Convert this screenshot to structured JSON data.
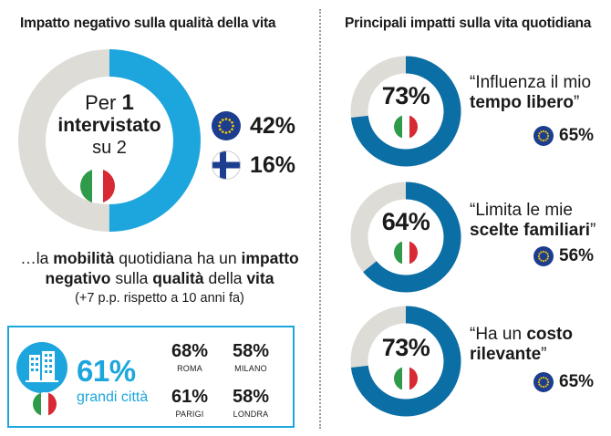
{
  "left": {
    "title": "Impatto negativo sulla qualità della vita",
    "donut": {
      "value_fraction": 0.5,
      "color": "#1ca6dd",
      "track_color": "#dedcd6"
    },
    "center_text": {
      "line1_pre": "Per",
      "line1_num": "1",
      "line2": "intervistato",
      "line3": "su 2"
    },
    "comparisons": [
      {
        "flag": "eu-flag-icon",
        "value": "42%"
      },
      {
        "flag": "finland-flag-icon",
        "value": "16%"
      }
    ],
    "caption": {
      "p1": "…la ",
      "b1": "mobilità",
      "p2": " quotidiana ha un ",
      "b2": "impatto",
      "b3": "negativo",
      "p3": " sulla ",
      "b4": "qualità",
      "p4": " della ",
      "b5": "vita",
      "note": "(+7 p.p. rispetto a 10 anni fa)"
    },
    "city_box": {
      "value": "61%",
      "label": "grandi città",
      "accent": "#1ca6dd",
      "cities": [
        {
          "value": "68%",
          "name": "ROMA"
        },
        {
          "value": "58%",
          "name": "MILANO"
        },
        {
          "value": "61%",
          "name": "PARIGI"
        },
        {
          "value": "58%",
          "name": "LONDRA"
        }
      ]
    }
  },
  "right": {
    "title": "Principali impatti sulla vita quotidiana",
    "track_color": "#dedcd6",
    "ring_color": "#0b6ea5",
    "items": [
      {
        "italy_value": "73%",
        "italy_fraction": 0.73,
        "quote_pre": "“Influenza il mio",
        "quote_bold": "tempo libero",
        "quote_post": "”",
        "eu_value": "65%"
      },
      {
        "italy_value": "64%",
        "italy_fraction": 0.64,
        "quote_pre": "“Limita le mie",
        "quote_bold": "scelte familiari",
        "quote_post": "”",
        "eu_value": "56%"
      },
      {
        "italy_value": "73%",
        "italy_fraction": 0.73,
        "quote_pre": "“Ha un ",
        "quote_bold_inline": "costo",
        "quote_bold": "rilevante",
        "quote_post": "”",
        "eu_value": "65%"
      }
    ]
  },
  "chart_data": [
    {
      "type": "pie",
      "title": "Impatto negativo sulla qualità della vita",
      "categories": [
        "Italia",
        "UE",
        "Finlandia"
      ],
      "values": [
        50,
        42,
        16
      ],
      "unit": "%",
      "annotations": [
        "Per 1 intervistato su 2",
        "+7 p.p. rispetto a 10 anni fa"
      ]
    },
    {
      "type": "table",
      "title": "grandi città",
      "categories": [
        "Roma",
        "Milano",
        "Parigi",
        "Londra",
        "grandi città (Italia)"
      ],
      "values": [
        68,
        58,
        61,
        58,
        61
      ],
      "unit": "%"
    },
    {
      "type": "pie",
      "title": "Principali impatti sulla vita quotidiana",
      "categories": [
        "Influenza il mio tempo libero",
        "Limita le mie scelte familiari",
        "Ha un costo rilevante"
      ],
      "series": [
        {
          "name": "Italia",
          "values": [
            73,
            64,
            73
          ]
        },
        {
          "name": "UE",
          "values": [
            65,
            56,
            65
          ]
        }
      ],
      "unit": "%"
    }
  ]
}
